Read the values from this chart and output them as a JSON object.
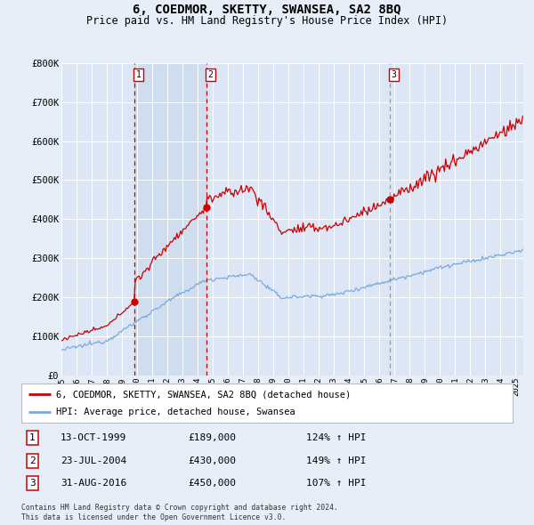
{
  "title": "6, COEDMOR, SKETTY, SWANSEA, SA2 8BQ",
  "subtitle": "Price paid vs. HM Land Registry's House Price Index (HPI)",
  "red_label": "6, COEDMOR, SKETTY, SWANSEA, SA2 8BQ (detached house)",
  "blue_label": "HPI: Average price, detached house, Swansea",
  "footer1": "Contains HM Land Registry data © Crown copyright and database right 2024.",
  "footer2": "This data is licensed under the Open Government Licence v3.0.",
  "sale_dates_str": [
    "13-OCT-1999",
    "23-JUL-2004",
    "31-AUG-2016"
  ],
  "sale_prices_str": [
    "£189,000",
    "£430,000",
    "£450,000"
  ],
  "sale_pcts_str": [
    "124% ↑ HPI",
    "149% ↑ HPI",
    "107% ↑ HPI"
  ],
  "ylim": [
    0,
    800000
  ],
  "yticks": [
    0,
    100000,
    200000,
    300000,
    400000,
    500000,
    600000,
    700000,
    800000
  ],
  "ytick_labels": [
    "£0",
    "£100K",
    "£200K",
    "£300K",
    "£400K",
    "£500K",
    "£600K",
    "£700K",
    "£800K"
  ],
  "xlim_start": 1995.0,
  "xlim_end": 2025.5,
  "bg_color": "#e8eef8",
  "plot_bg": "#dce6f5",
  "grid_color": "#ffffff",
  "red_color": "#cc0000",
  "blue_color": "#7aaadd",
  "title_fontsize": 10,
  "subtitle_fontsize": 8.5,
  "s1_x": 1999.79,
  "s2_x": 2004.56,
  "s3_x": 2016.67,
  "s1_y": 189000,
  "s2_y": 430000,
  "s3_y": 450000
}
